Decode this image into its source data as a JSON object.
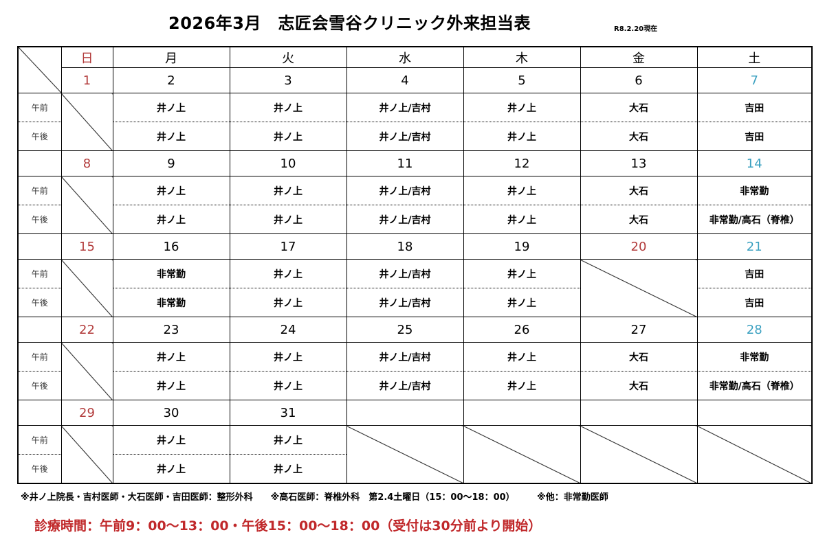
{
  "title": "2026年3月　志匠会雪谷クリニック外来担当表",
  "as_of": "R8.2.20現在",
  "colors": {
    "sunday": "#b23b3b",
    "saturday": "#3aa0c0",
    "holiday": "#b23b3b"
  },
  "weekdays": [
    "日",
    "月",
    "火",
    "水",
    "木",
    "金",
    "土"
  ],
  "labels": {
    "am": "午前",
    "pm": "午後"
  },
  "holidays": [
    "20"
  ],
  "weeks": [
    {
      "dates": [
        "1",
        "2",
        "3",
        "4",
        "5",
        "6",
        "7"
      ],
      "am": [
        "/",
        "井ノ上",
        "井ノ上",
        "井ノ上/吉村",
        "井ノ上",
        "大石",
        "吉田"
      ],
      "pm": [
        "/",
        "井ノ上",
        "井ノ上",
        "井ノ上/吉村",
        "井ノ上",
        "大石",
        "吉田"
      ]
    },
    {
      "dates": [
        "8",
        "9",
        "10",
        "11",
        "12",
        "13",
        "14"
      ],
      "am": [
        "/",
        "井ノ上",
        "井ノ上",
        "井ノ上/吉村",
        "井ノ上",
        "大石",
        "非常勤"
      ],
      "pm": [
        "/",
        "井ノ上",
        "井ノ上",
        "井ノ上/吉村",
        "井ノ上",
        "大石",
        "非常勤/高石（脊椎）"
      ]
    },
    {
      "dates": [
        "15",
        "16",
        "17",
        "18",
        "19",
        "20",
        "21"
      ],
      "am": [
        "/",
        "非常勤",
        "井ノ上",
        "井ノ上/吉村",
        "井ノ上",
        "/",
        "吉田"
      ],
      "pm": [
        "/",
        "非常勤",
        "井ノ上",
        "井ノ上/吉村",
        "井ノ上",
        "/",
        "吉田"
      ]
    },
    {
      "dates": [
        "22",
        "23",
        "24",
        "25",
        "26",
        "27",
        "28"
      ],
      "am": [
        "/",
        "井ノ上",
        "井ノ上",
        "井ノ上/吉村",
        "井ノ上",
        "大石",
        "非常勤"
      ],
      "pm": [
        "/",
        "井ノ上",
        "井ノ上",
        "井ノ上/吉村",
        "井ノ上",
        "大石",
        "非常勤/高石（脊椎）"
      ]
    },
    {
      "dates": [
        "29",
        "30",
        "31",
        "",
        "",
        "",
        ""
      ],
      "am": [
        "/",
        "井ノ上",
        "井ノ上",
        "/",
        "/",
        "/",
        "/"
      ],
      "pm": [
        "/",
        "井ノ上",
        "井ノ上",
        "/",
        "/",
        "/",
        "/"
      ]
    }
  ],
  "footer": {
    "note": "※井ノ上院長・吉村医師・大石医師・吉田医師：整形外科　　※高石医師：脊椎外科　第2.4土曜日（15：00～18：00）　　　※他：非常勤医師",
    "hours": "診療時間：午前9：00～13：00・午後15：00～18：00（受付は30分前より開始）"
  }
}
